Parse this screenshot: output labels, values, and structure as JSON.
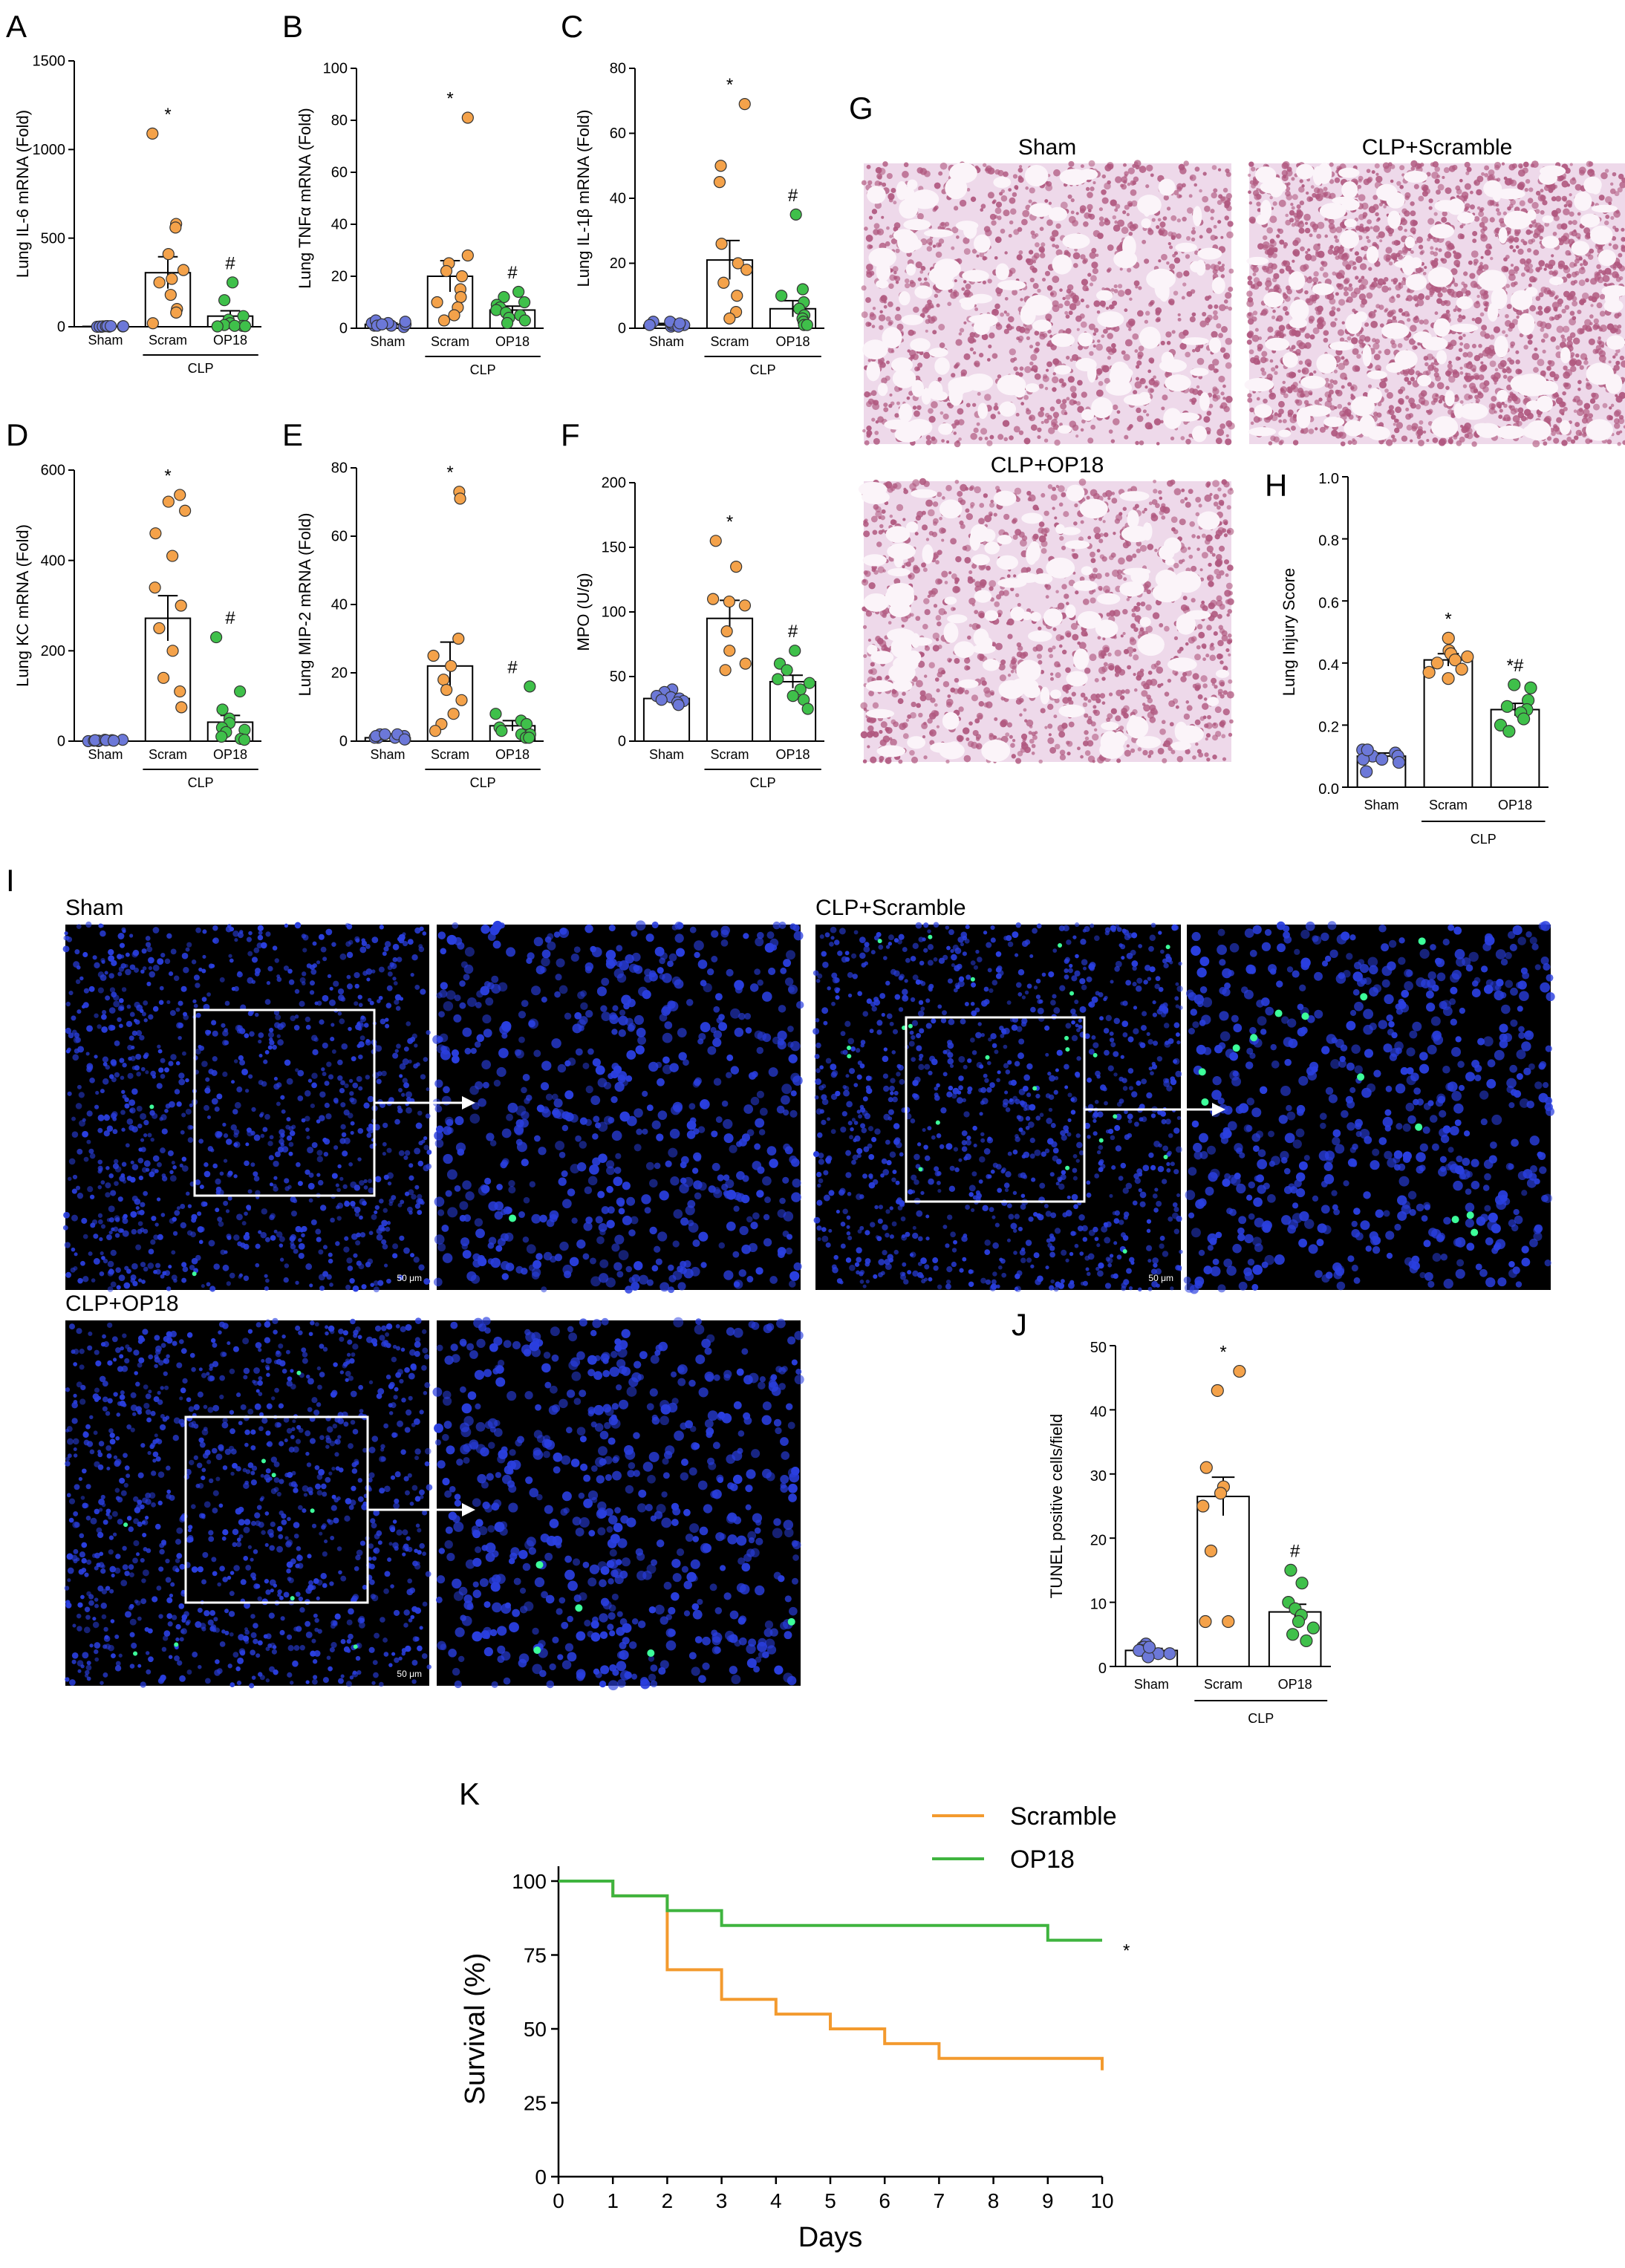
{
  "colors": {
    "sham": "#6c78d8",
    "scram": "#f4a24a",
    "op18": "#3fc04a",
    "scramble_line": "#f39a2e",
    "op18_line": "#3fb43f",
    "he_bg": "#eed9ea",
    "he_stain": "#b0587f",
    "tunel_bg": "#000000",
    "tunel_dapi": "#2a3fe0",
    "tunel_pos": "#3dff9a"
  },
  "chart_data": [
    {
      "id": "A",
      "type": "bar",
      "panel_letter": "A",
      "ylabel": "Lung IL-6 mRNA (Fold)",
      "ylim": [
        0,
        1500
      ],
      "yticks": [
        0,
        500,
        1000,
        1500
      ],
      "categories": [
        "Sham",
        "Scram",
        "OP18"
      ],
      "group_label": "CLP",
      "values": [
        2,
        305,
        60
      ],
      "errors": [
        1,
        90,
        30
      ],
      "significance": [
        "",
        "*",
        "#"
      ],
      "points": [
        [
          0,
          0,
          1,
          1,
          2,
          2,
          3,
          3,
          4,
          4
        ],
        [
          1090,
          580,
          560,
          410,
          320,
          270,
          250,
          180,
          100,
          80,
          20
        ],
        [
          250,
          150,
          60,
          40,
          20,
          10,
          5,
          5,
          3,
          2
        ]
      ]
    },
    {
      "id": "B",
      "type": "bar",
      "panel_letter": "B",
      "ylabel": "Lung TNFα mRNA (Fold)",
      "ylim": [
        0,
        100
      ],
      "yticks": [
        0,
        20,
        40,
        60,
        80,
        100
      ],
      "categories": [
        "Sham",
        "Scram",
        "OP18"
      ],
      "group_label": "CLP",
      "values": [
        1.5,
        20,
        7
      ],
      "errors": [
        0.5,
        6,
        1.5
      ],
      "significance": [
        "",
        "*",
        "#"
      ],
      "points": [
        [
          0.5,
          1,
          1,
          1.5,
          2,
          2,
          2.5,
          3,
          1,
          1.5
        ],
        [
          81,
          28,
          25,
          22,
          20,
          15,
          12,
          10,
          8,
          5,
          3
        ],
        [
          14,
          12,
          10,
          9,
          8,
          7,
          6,
          5,
          4,
          3,
          2
        ]
      ]
    },
    {
      "id": "C",
      "type": "bar",
      "panel_letter": "C",
      "ylabel": "Lung IL-1β mRNA (Fold)",
      "ylim": [
        0,
        80
      ],
      "yticks": [
        0,
        20,
        40,
        60,
        80
      ],
      "categories": [
        "Sham",
        "Scram",
        "OP18"
      ],
      "group_label": "CLP",
      "values": [
        1,
        21,
        6
      ],
      "errors": [
        0.5,
        6,
        2.5
      ],
      "significance": [
        "",
        "*",
        "#"
      ],
      "points": [
        [
          0.5,
          1,
          1,
          1.5,
          2,
          2,
          1,
          0.5,
          1.5,
          1
        ],
        [
          69,
          50,
          45,
          26,
          20,
          18,
          14,
          10,
          5,
          3
        ],
        [
          35,
          12,
          10,
          8,
          6,
          4,
          3,
          2,
          1,
          1
        ]
      ]
    },
    {
      "id": "D",
      "type": "bar",
      "panel_letter": "D",
      "ylabel": "Lung KC mRNA (Fold)",
      "ylim": [
        0,
        600
      ],
      "yticks": [
        0,
        200,
        400,
        600
      ],
      "categories": [
        "Sham",
        "Scram",
        "OP18"
      ],
      "group_label": "CLP",
      "values": [
        2,
        272,
        42
      ],
      "errors": [
        1,
        50,
        15
      ],
      "significance": [
        "",
        "*",
        "#"
      ],
      "points": [
        [
          0,
          0,
          1,
          1,
          2,
          2,
          3,
          3,
          2,
          1
        ],
        [
          545,
          530,
          510,
          460,
          410,
          340,
          300,
          250,
          200,
          140,
          110,
          75
        ],
        [
          230,
          110,
          70,
          50,
          40,
          30,
          25,
          20,
          10,
          5,
          3
        ]
      ]
    },
    {
      "id": "E",
      "type": "bar",
      "panel_letter": "E",
      "ylabel": "Lung MIP-2 mRNA (Fold)",
      "ylim": [
        0,
        80
      ],
      "yticks": [
        0,
        20,
        40,
        60,
        80
      ],
      "categories": [
        "Sham",
        "Scram",
        "OP18"
      ],
      "group_label": "CLP",
      "values": [
        1,
        22,
        4.5
      ],
      "errors": [
        0.5,
        7,
        1.5
      ],
      "significance": [
        "",
        "*",
        "#"
      ],
      "points": [
        [
          0.5,
          1,
          1,
          1.5,
          2,
          2,
          0.5,
          1,
          1.5,
          2
        ],
        [
          73,
          71,
          30,
          25,
          22,
          18,
          15,
          12,
          8,
          5,
          3
        ],
        [
          16,
          8,
          6,
          5,
          4,
          3,
          2,
          2,
          1,
          1
        ]
      ]
    },
    {
      "id": "F",
      "type": "bar",
      "panel_letter": "F",
      "ylabel": "MPO (U/g)",
      "ylim": [
        0,
        200
      ],
      "yticks": [
        0,
        50,
        100,
        150,
        200
      ],
      "categories": [
        "Sham",
        "Scram",
        "OP18"
      ],
      "group_label": "CLP",
      "values": [
        33,
        95,
        46
      ],
      "errors": [
        2,
        14,
        5
      ],
      "significance": [
        "",
        "*",
        "#"
      ],
      "points": [
        [
          40,
          38,
          35,
          34,
          33,
          32,
          31,
          30,
          28
        ],
        [
          155,
          135,
          110,
          108,
          105,
          85,
          70,
          60,
          55
        ],
        [
          70,
          60,
          55,
          48,
          45,
          40,
          35,
          32,
          25
        ]
      ]
    },
    {
      "id": "H",
      "type": "bar",
      "panel_letter": "H",
      "ylabel": "Lung Injury Score",
      "ylim": [
        0,
        1.0
      ],
      "yticks": [
        0.0,
        0.2,
        0.4,
        0.6,
        0.8,
        1.0
      ],
      "categories": [
        "Sham",
        "Scram",
        "OP18"
      ],
      "group_label": "CLP",
      "values": [
        0.1,
        0.41,
        0.25
      ],
      "errors": [
        0.01,
        0.02,
        0.02
      ],
      "significance": [
        "",
        "*",
        "*#"
      ],
      "points": [
        [
          0.12,
          0.11,
          0.1,
          0.1,
          0.09,
          0.09,
          0.08,
          0.05,
          0.12
        ],
        [
          0.48,
          0.44,
          0.43,
          0.42,
          0.41,
          0.4,
          0.38,
          0.37,
          0.35
        ],
        [
          0.33,
          0.32,
          0.28,
          0.26,
          0.25,
          0.24,
          0.22,
          0.2,
          0.18
        ]
      ]
    },
    {
      "id": "J",
      "type": "bar",
      "panel_letter": "J",
      "ylabel": "TUNEL positive cells/field",
      "ylim": [
        0,
        50
      ],
      "yticks": [
        0,
        10,
        20,
        30,
        40,
        50
      ],
      "categories": [
        "Sham",
        "Scram",
        "OP18"
      ],
      "group_label": "CLP",
      "values": [
        2.5,
        26.5,
        8.5
      ],
      "errors": [
        0.3,
        3,
        1.2
      ],
      "significance": [
        "",
        "*",
        "#"
      ],
      "points": [
        [
          3.5,
          3,
          3,
          2.5,
          2.5,
          2,
          2,
          1.5,
          3
        ],
        [
          46,
          43,
          31,
          28,
          27,
          25,
          18,
          7,
          7
        ],
        [
          15,
          13,
          10,
          9,
          8,
          7,
          6,
          5,
          4
        ]
      ]
    },
    {
      "id": "K",
      "type": "line",
      "panel_letter": "K",
      "xlabel": "Days",
      "ylabel": "Survival (%)",
      "xlim": [
        0,
        10
      ],
      "ylim": [
        0,
        100
      ],
      "xticks": [
        0,
        1,
        2,
        3,
        4,
        5,
        6,
        7,
        8,
        9,
        10
      ],
      "yticks": [
        0,
        25,
        50,
        75,
        100
      ],
      "legend_position": "top-right",
      "series": [
        {
          "name": "Scramble",
          "x": [
            0,
            1,
            2,
            3,
            4,
            5,
            6,
            7,
            10
          ],
          "y": [
            100,
            95,
            70,
            60,
            55,
            50,
            45,
            40,
            36
          ]
        },
        {
          "name": "OP18",
          "x": [
            0,
            1,
            2,
            3,
            9,
            10
          ],
          "y": [
            100,
            95,
            90,
            85,
            80,
            80
          ]
        }
      ],
      "significance": "*"
    }
  ],
  "images": {
    "panel_G_letter": "G",
    "panel_I_letter": "I",
    "he": [
      {
        "title": "Sham"
      },
      {
        "title": "CLP+Scramble"
      },
      {
        "title": "CLP+OP18"
      }
    ],
    "tunel": [
      {
        "title": "Sham",
        "scale_bar": "50 μm"
      },
      {
        "title": "CLP+Scramble",
        "scale_bar": "50 μm"
      },
      {
        "title": "CLP+OP18",
        "scale_bar": "50 μm"
      }
    ]
  }
}
